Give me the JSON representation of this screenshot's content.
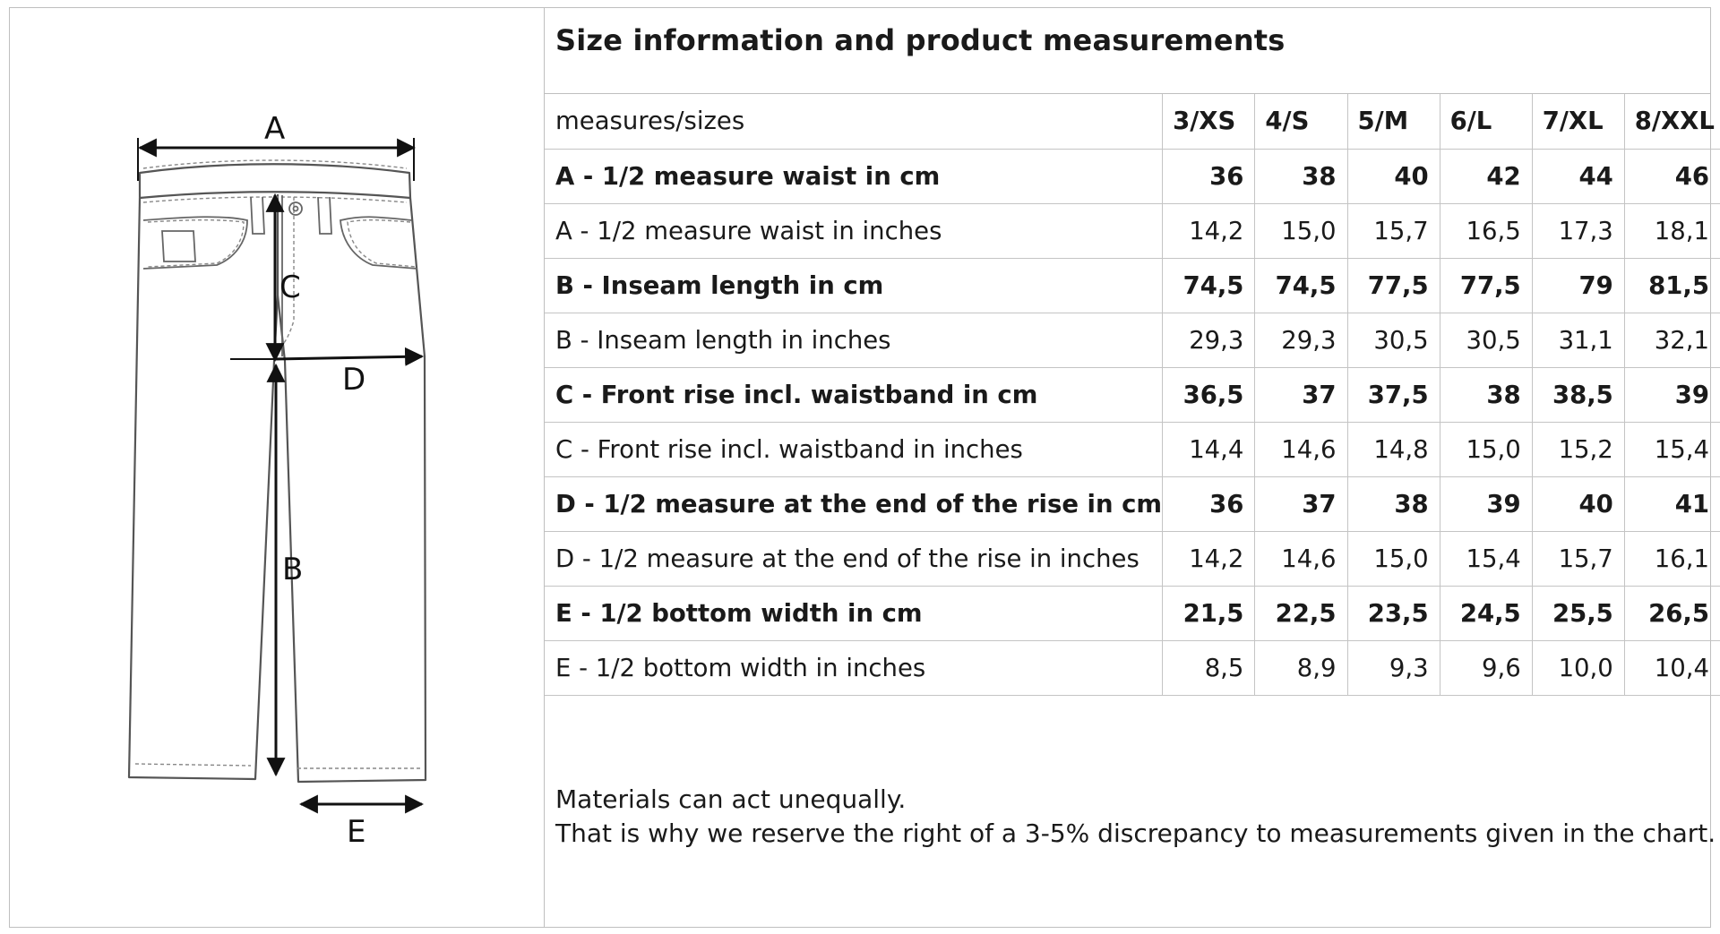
{
  "title": "Size information and product measurements",
  "diagram": {
    "labels": {
      "a": "A",
      "b": "B",
      "c": "C",
      "d": "D",
      "e": "E"
    }
  },
  "table": {
    "header_label": "measures/sizes",
    "sizes": [
      "3/XS",
      "4/S",
      "5/M",
      "6/L",
      "7/XL",
      "8/XXL"
    ],
    "rows": [
      {
        "label": "A - 1/2 measure waist in cm",
        "bold": true,
        "values": [
          "36",
          "38",
          "40",
          "42",
          "44",
          "46"
        ]
      },
      {
        "label": "A - 1/2 measure waist in inches",
        "bold": false,
        "values": [
          "14,2",
          "15,0",
          "15,7",
          "16,5",
          "17,3",
          "18,1"
        ]
      },
      {
        "label": "B - Inseam length in cm",
        "bold": true,
        "values": [
          "74,5",
          "74,5",
          "77,5",
          "77,5",
          "79",
          "81,5"
        ]
      },
      {
        "label": "B - Inseam length in inches",
        "bold": false,
        "values": [
          "29,3",
          "29,3",
          "30,5",
          "30,5",
          "31,1",
          "32,1"
        ]
      },
      {
        "label": "C - Front rise incl. waistband in cm",
        "bold": true,
        "values": [
          "36,5",
          "37",
          "37,5",
          "38",
          "38,5",
          "39"
        ]
      },
      {
        "label": "C - Front rise incl. waistband in inches",
        "bold": false,
        "values": [
          "14,4",
          "14,6",
          "14,8",
          "15,0",
          "15,2",
          "15,4"
        ]
      },
      {
        "label": "D - 1/2 measure at the end of the rise in cm",
        "bold": true,
        "values": [
          "36",
          "37",
          "38",
          "39",
          "40",
          "41"
        ]
      },
      {
        "label": "D - 1/2 measure at the end of the rise in inches",
        "bold": false,
        "values": [
          "14,2",
          "14,6",
          "15,0",
          "15,4",
          "15,7",
          "16,1"
        ]
      },
      {
        "label": "E -  1/2 bottom width in cm",
        "bold": true,
        "values": [
          "21,5",
          "22,5",
          "23,5",
          "24,5",
          "25,5",
          "26,5"
        ]
      },
      {
        "label": "E -  1/2 bottom width in inches",
        "bold": false,
        "values": [
          "8,5",
          "8,9",
          "9,3",
          "9,6",
          "10,0",
          "10,4"
        ]
      }
    ]
  },
  "notes": {
    "line1": "Materials can act unequally.",
    "line2": "That is why we reserve the right of a 3-5% discrepancy to measurements given in the chart."
  }
}
